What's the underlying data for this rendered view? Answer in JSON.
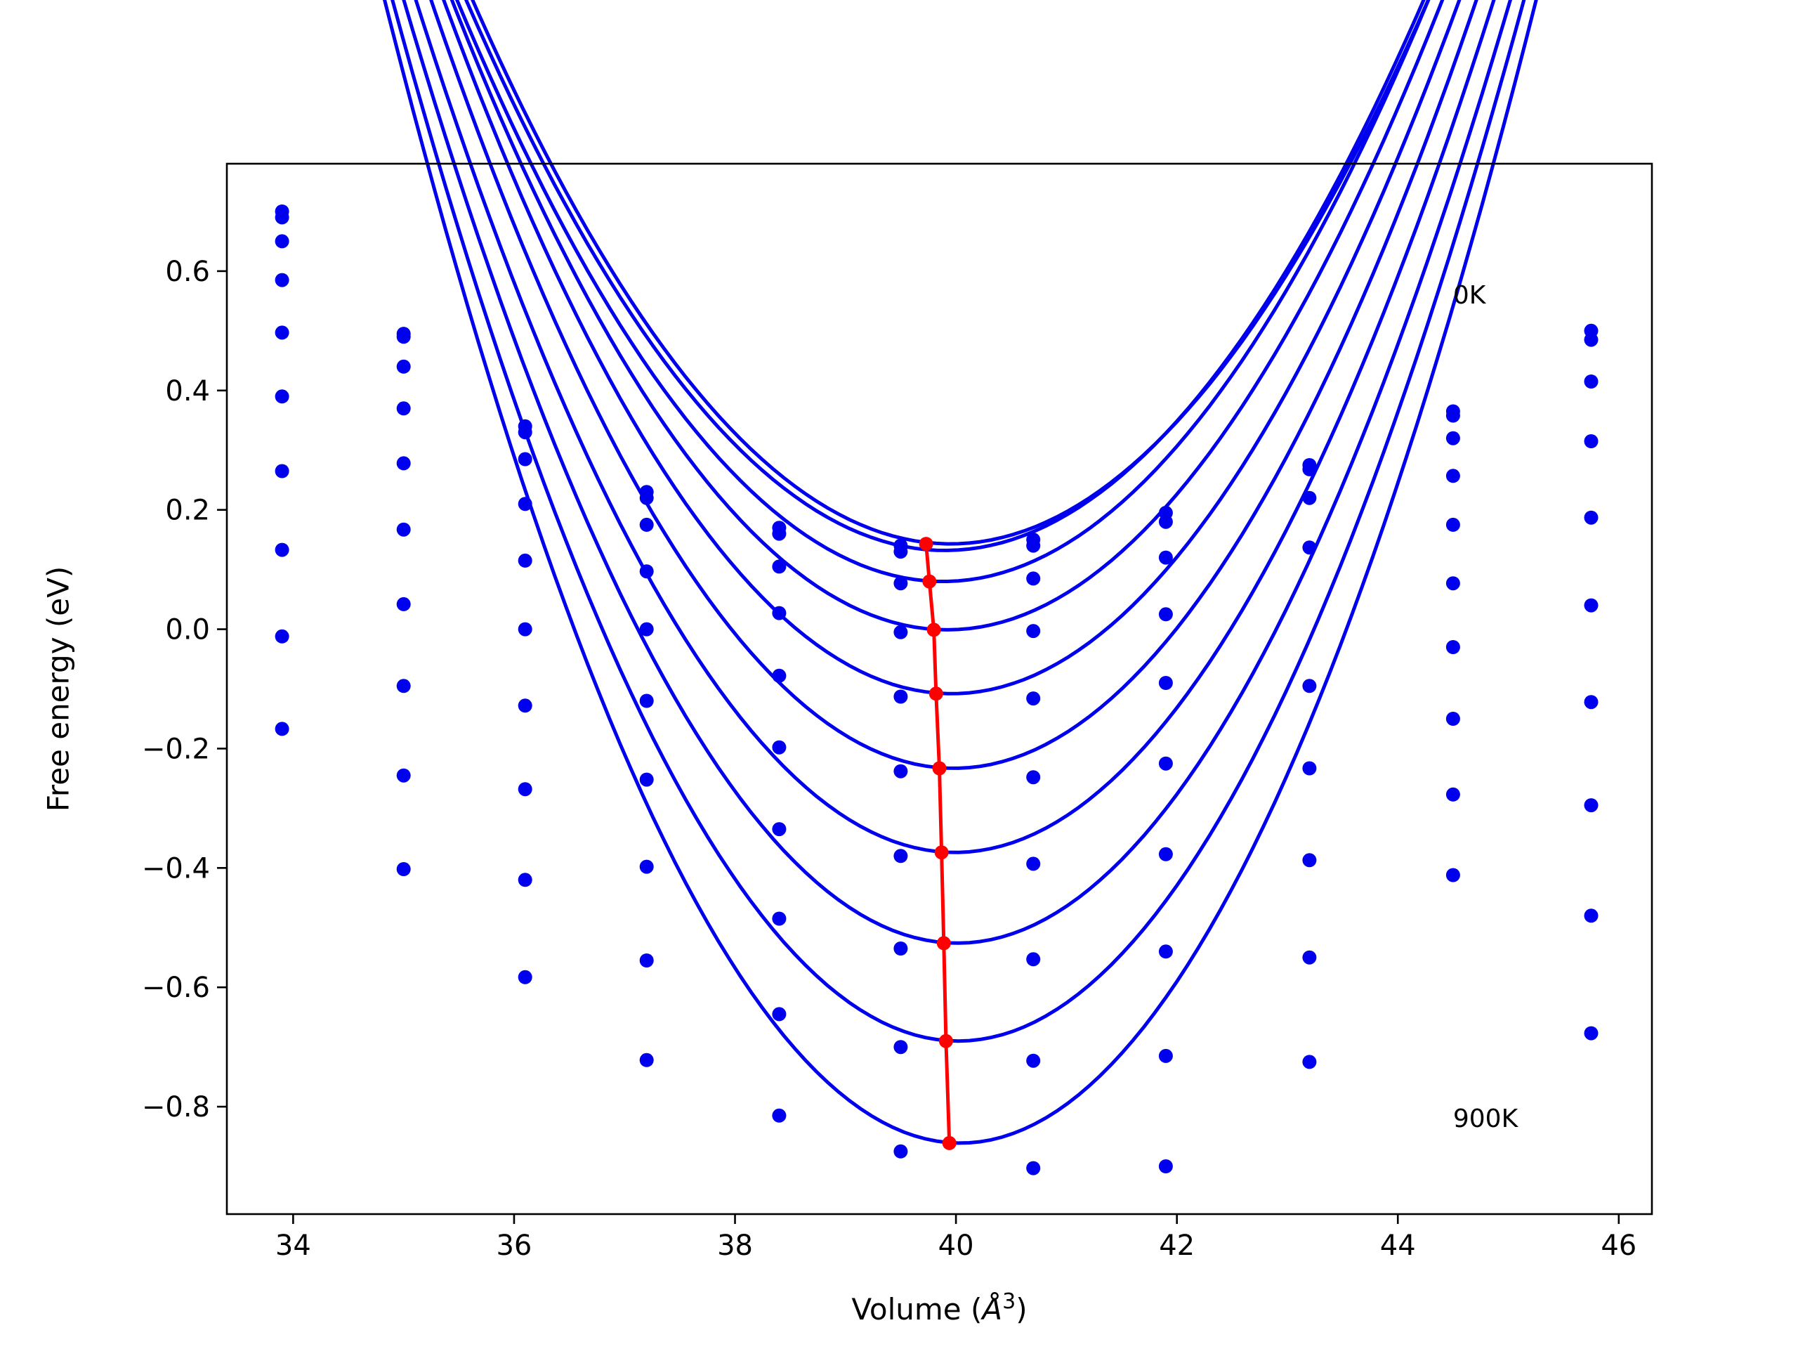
{
  "chart_data": {
    "type": "line",
    "title": "",
    "xlabel_text": "Volume (",
    "xlabel_unit_base": "Å",
    "xlabel_unit_exp": "3",
    "xlabel_close": ")",
    "ylabel": "Free energy (eV)",
    "xlim": [
      33.4,
      46.3
    ],
    "ylim": [
      -0.98,
      0.78
    ],
    "xticks": [
      34,
      36,
      38,
      40,
      42,
      44,
      46
    ],
    "xtick_labels": [
      "34",
      "36",
      "38",
      "40",
      "42",
      "44",
      "46"
    ],
    "yticks": [
      -0.8,
      -0.6,
      -0.4,
      -0.2,
      0.0,
      0.2,
      0.4,
      0.6
    ],
    "ytick_labels": [
      "−0.8",
      "−0.6",
      "−0.4",
      "−0.2",
      "0.0",
      "0.2",
      "0.4",
      "0.6"
    ],
    "grid": false,
    "annotations": [
      {
        "text": "0K",
        "x": 44.5,
        "y": 0.56
      },
      {
        "text": "900K",
        "x": 44.5,
        "y": -0.82
      }
    ],
    "point_volumes": [
      33.9,
      35.0,
      36.1,
      37.2,
      38.4,
      39.5,
      40.7,
      41.9,
      43.2,
      44.5,
      45.75
    ],
    "series": [
      {
        "color": "#0000ee",
        "fit": {
          "a": 0.0487,
          "v0": 39.95,
          "emin": 0.143
        },
        "points": [
          0.7,
          0.495,
          0.34,
          0.23,
          0.17,
          0.14,
          0.15,
          0.195,
          0.275,
          0.365,
          0.5
        ]
      },
      {
        "color": "#0000ee",
        "fit": {
          "a": 0.0491,
          "v0": 39.9,
          "emin": 0.132
        },
        "points": [
          0.69,
          0.49,
          0.33,
          0.22,
          0.16,
          0.13,
          0.14,
          0.18,
          0.268,
          0.358,
          0.485
        ]
      },
      {
        "color": "#0000ee",
        "fit": {
          "a": 0.0504,
          "v0": 39.88,
          "emin": 0.08
        },
        "points": [
          0.65,
          0.44,
          0.285,
          0.175,
          0.105,
          0.077,
          0.085,
          0.12,
          0.22,
          0.32,
          0.415
        ]
      },
      {
        "color": "#0000ee",
        "fit": {
          "a": 0.0525,
          "v0": 39.92,
          "emin": -0.001
        },
        "points": [
          0.585,
          0.37,
          0.21,
          0.097,
          0.027,
          -0.005,
          -0.003,
          0.025,
          0.137,
          0.257,
          0.315
        ]
      },
      {
        "color": "#0000ee",
        "fit": {
          "a": 0.055,
          "v0": 39.96,
          "emin": -0.108
        },
        "points": [
          0.497,
          0.278,
          0.115,
          0.0,
          -0.078,
          -0.113,
          -0.116,
          -0.09,
          -0.095,
          0.175,
          0.187
        ]
      },
      {
        "color": "#0000ee",
        "fit": {
          "a": 0.0575,
          "v0": 39.98,
          "emin": -0.233
        },
        "points": [
          0.39,
          0.167,
          0.0,
          -0.12,
          -0.198,
          -0.238,
          -0.248,
          -0.225,
          -0.233,
          0.077,
          0.04
        ]
      },
      {
        "color": "#0000ee",
        "fit": {
          "a": 0.06,
          "v0": 39.99,
          "emin": -0.374
        },
        "points": [
          0.265,
          0.042,
          -0.128,
          -0.252,
          -0.335,
          -0.38,
          -0.393,
          -0.377,
          -0.387,
          -0.03,
          -0.122
        ]
      },
      {
        "color": "#0000ee",
        "fit": {
          "a": 0.063,
          "v0": 40.01,
          "emin": -0.526
        },
        "points": [
          0.133,
          -0.095,
          -0.268,
          -0.398,
          -0.485,
          -0.535,
          -0.553,
          -0.54,
          -0.55,
          -0.15,
          -0.295
        ]
      },
      {
        "color": "#0000ee",
        "fit": {
          "a": 0.0665,
          "v0": 40.02,
          "emin": -0.69
        },
        "points": [
          -0.012,
          -0.245,
          -0.42,
          -0.555,
          -0.645,
          -0.7,
          -0.723,
          -0.715,
          -0.725,
          -0.277,
          -0.48
        ]
      },
      {
        "color": "#0000ee",
        "fit": {
          "a": 0.0705,
          "v0": 40.04,
          "emin": -0.861
        },
        "points": [
          -0.167,
          -0.402,
          -0.583,
          -0.722,
          -0.815,
          -0.875,
          -0.903,
          -0.9,
          null,
          -0.412,
          -0.677
        ]
      }
    ],
    "minimum_line": {
      "color": "#ff0000",
      "x": [
        39.73,
        39.76,
        39.8,
        39.82,
        39.85,
        39.87,
        39.89,
        39.91,
        39.94
      ],
      "y": [
        0.143,
        0.08,
        -0.001,
        -0.108,
        -0.233,
        -0.374,
        -0.526,
        -0.69,
        -0.861
      ]
    }
  }
}
